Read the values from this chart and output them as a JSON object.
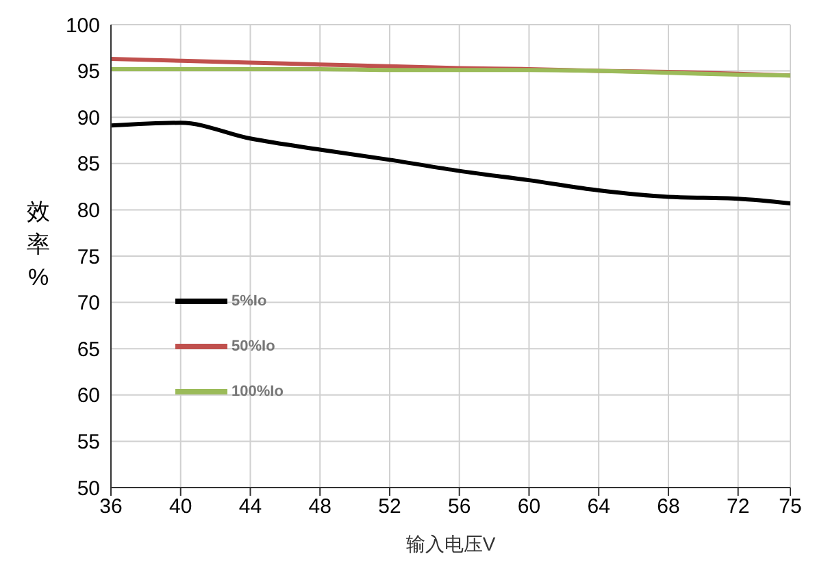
{
  "chart_data": {
    "type": "line",
    "xlabel": "输入电压V",
    "ylabel": "效率%",
    "x": [
      36,
      40,
      44,
      48,
      52,
      56,
      60,
      64,
      68,
      72,
      75
    ],
    "series": [
      {
        "name": "5%Io",
        "color": "#000000",
        "values": [
          89.1,
          89.4,
          87.7,
          86.5,
          85.4,
          84.2,
          83.2,
          82.1,
          81.4,
          81.2,
          80.7
        ]
      },
      {
        "name": "50%Io",
        "color": "#c0504d",
        "values": [
          96.3,
          96.1,
          95.9,
          95.7,
          95.5,
          95.3,
          95.2,
          95,
          94.9,
          94.7,
          94.5
        ]
      },
      {
        "name": "100%Io",
        "color": "#9bbb59",
        "values": [
          95.2,
          95.2,
          95.2,
          95.2,
          95.1,
          95.1,
          95.1,
          95,
          94.8,
          94.6,
          94.5
        ]
      }
    ],
    "xlim": [
      36,
      75
    ],
    "xticks": [
      36,
      40,
      44,
      48,
      52,
      56,
      60,
      64,
      68,
      72,
      75
    ],
    "ylim": [
      50,
      100
    ],
    "yticks": [
      50,
      55,
      60,
      65,
      70,
      75,
      80,
      85,
      90,
      95,
      100
    ],
    "grid": true,
    "legend": "left",
    "marker": "none",
    "line_style": "solid"
  }
}
